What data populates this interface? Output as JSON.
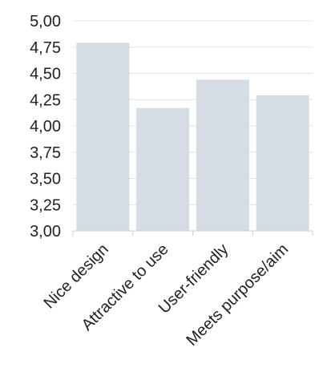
{
  "chart_data": {
    "type": "bar",
    "categories": [
      "Nice design",
      "Attractive to use",
      "User-friendly",
      "Meets purpose/aim"
    ],
    "values": [
      4.79,
      4.17,
      4.44,
      4.29
    ],
    "ylim": [
      3.0,
      5.0
    ],
    "yticks": [
      "3,00",
      "3,25",
      "3,50",
      "3,75",
      "4,00",
      "4,25",
      "4,50",
      "4,75",
      "5,00"
    ],
    "grid": true,
    "bar_color": "#d6dce4"
  }
}
